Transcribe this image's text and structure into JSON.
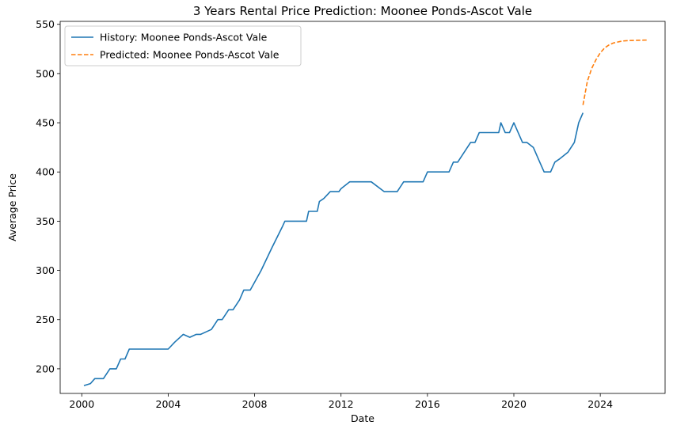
{
  "chart_data": {
    "type": "line",
    "title": "3 Years Rental Price Prediction: Moonee Ponds-Ascot Vale",
    "xlabel": "Date",
    "ylabel": "Average Price",
    "xlim": [
      1999.0,
      2027.0
    ],
    "ylim": [
      175,
      553
    ],
    "x_ticks": [
      2000,
      2004,
      2008,
      2012,
      2016,
      2020,
      2024
    ],
    "y_ticks": [
      200,
      250,
      300,
      350,
      400,
      450,
      500,
      550
    ],
    "grid": false,
    "legend_position": "top-left",
    "series": [
      {
        "name": "History: Moonee Ponds-Ascot Vale",
        "color": "#1f77b4",
        "style": "solid",
        "x": [
          2000.1,
          2000.4,
          2000.6,
          2000.9,
          2001.0,
          2001.3,
          2001.4,
          2001.6,
          2001.8,
          2002.0,
          2002.2,
          2002.5,
          2003.0,
          2003.5,
          2004.0,
          2004.3,
          2004.7,
          2005.0,
          2005.3,
          2005.5,
          2005.8,
          2006.0,
          2006.3,
          2006.5,
          2006.8,
          2007.0,
          2007.3,
          2007.5,
          2007.8,
          2008.3,
          2008.8,
          2009.3,
          2009.4,
          2010.0,
          2010.4,
          2010.5,
          2010.9,
          2011.0,
          2011.2,
          2011.5,
          2011.9,
          2012.0,
          2012.4,
          2012.5,
          2013.0,
          2013.4,
          2014.0,
          2014.4,
          2014.6,
          2014.9,
          2015.0,
          2015.4,
          2015.8,
          2016.0,
          2016.5,
          2016.9,
          2017.0,
          2017.2,
          2017.4,
          2018.0,
          2018.2,
          2018.4,
          2018.5,
          2019.0,
          2019.3,
          2019.4,
          2019.6,
          2019.8,
          2020.0,
          2020.4,
          2020.6,
          2020.9,
          2021.2,
          2021.4,
          2021.7,
          2021.9,
          2022.1,
          2022.5,
          2022.8,
          2023.0,
          2023.2
        ],
        "values": [
          183,
          185,
          190,
          190,
          190,
          200,
          200,
          200,
          210,
          210,
          220,
          220,
          220,
          220,
          220,
          227,
          235,
          232,
          235,
          235,
          238,
          240,
          250,
          250,
          260,
          260,
          270,
          280,
          280,
          300,
          323,
          345,
          350,
          350,
          350,
          360,
          360,
          370,
          373,
          380,
          380,
          383,
          390,
          390,
          390,
          390,
          380,
          380,
          380,
          390,
          390,
          390,
          390,
          400,
          400,
          400,
          400,
          410,
          410,
          430,
          430,
          440,
          440,
          440,
          440,
          450,
          440,
          440,
          450,
          430,
          430,
          425,
          410,
          400,
          400,
          410,
          413,
          420,
          430,
          450,
          460
        ]
      },
      {
        "name": "Predicted: Moonee Ponds-Ascot Vale",
        "color": "#ff7f0e",
        "style": "dashed",
        "x": [
          2023.2,
          2023.4,
          2023.6,
          2023.8,
          2024.0,
          2024.2,
          2024.4,
          2024.6,
          2024.8,
          2025.0,
          2025.3,
          2025.6,
          2026.0,
          2026.2
        ],
        "values": [
          468,
          492,
          505,
          514,
          521,
          526,
          529,
          531,
          532,
          533,
          533.5,
          533.7,
          533.9,
          534
        ]
      }
    ]
  }
}
